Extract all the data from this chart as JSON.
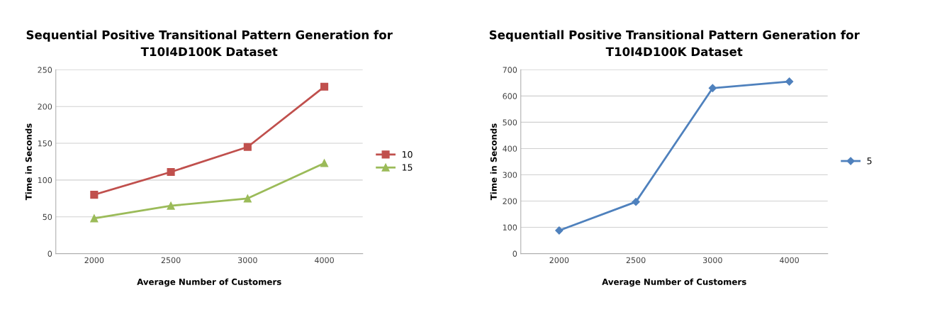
{
  "chart_data": [
    {
      "type": "line",
      "title": "Sequential Positive Transitional Pattern Generation for\nT10I4D100K Dataset",
      "xlabel": "Average Number of Customers",
      "ylabel": "Time in Seconds",
      "categories": [
        "2000",
        "2500",
        "3000",
        "4000"
      ],
      "series": [
        {
          "name": "10",
          "color": "#c0504d",
          "marker": "square",
          "values": [
            80,
            111,
            145,
            227
          ]
        },
        {
          "name": "15",
          "color": "#9bbb59",
          "marker": "triangle",
          "values": [
            48,
            65,
            75,
            123
          ]
        }
      ],
      "ylim": [
        0,
        250
      ],
      "yticks": [
        0,
        50,
        100,
        150,
        200,
        250
      ],
      "grid": "y",
      "legend": "right",
      "line_style": "solid"
    },
    {
      "type": "line",
      "title": "Sequentiall Positive Transitional Pattern Generation for\nT10I4D100K Dataset",
      "xlabel": "Average Number of Customers",
      "ylabel": "Time in Seconds",
      "categories": [
        "2000",
        "2500",
        "3000",
        "4000"
      ],
      "series": [
        {
          "name": "5",
          "color": "#4f81bd",
          "marker": "diamond",
          "values": [
            88,
            197,
            630,
            655
          ]
        }
      ],
      "ylim": [
        0,
        700
      ],
      "yticks": [
        0,
        100,
        200,
        300,
        400,
        500,
        600,
        700
      ],
      "grid": "y",
      "legend": "right",
      "line_style": "solid"
    }
  ]
}
